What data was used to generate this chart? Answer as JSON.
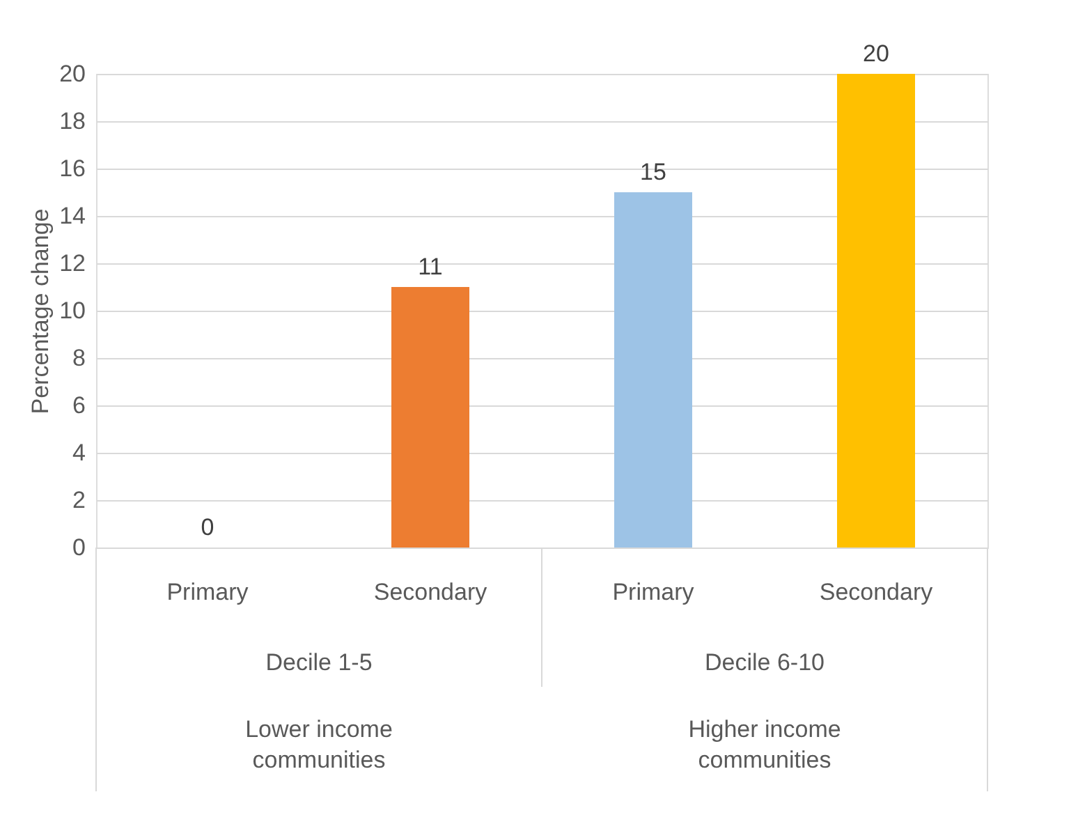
{
  "chart_data": {
    "type": "bar",
    "ylabel": "Percentage change",
    "categories": [
      "Primary",
      "Secondary",
      "Primary",
      "Secondary"
    ],
    "values": [
      0,
      11,
      15,
      20
    ],
    "colors": [
      "#5b9bd5",
      "#ed7d31",
      "#9dc3e6",
      "#ffc000"
    ],
    "ylim": [
      0,
      20
    ],
    "yticks": [
      0,
      2,
      4,
      6,
      8,
      10,
      12,
      14,
      16,
      18,
      20
    ],
    "grid": "y",
    "data_labels": true,
    "annotations": [
      "Decile 1-5",
      "Decile 6-10",
      "Lower income communities",
      "Higher income communities"
    ]
  }
}
